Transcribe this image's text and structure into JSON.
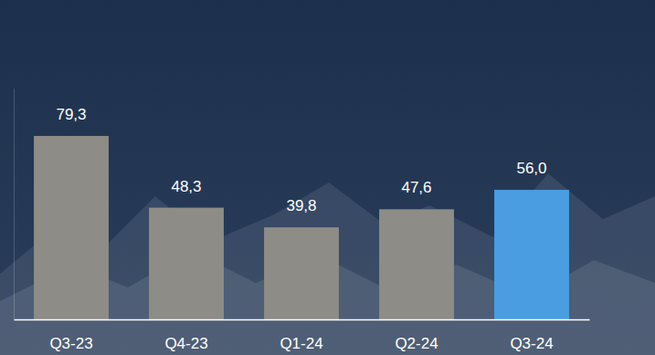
{
  "chart_data": {
    "type": "bar",
    "categories": [
      "Q3-23",
      "Q4-23",
      "Q1-24",
      "Q2-24",
      "Q3-24"
    ],
    "values": [
      79.3,
      48.3,
      39.8,
      47.6,
      56.0
    ],
    "value_labels": [
      "79,3",
      "48,3",
      "39,8",
      "47,6",
      "56,0"
    ],
    "colors": [
      "#8d8c87",
      "#8d8c87",
      "#8d8c87",
      "#8d8c87",
      "#4a9de0"
    ],
    "ylim": [
      0,
      100
    ],
    "data_labels": true,
    "tick_labels": "x",
    "grid": false
  }
}
